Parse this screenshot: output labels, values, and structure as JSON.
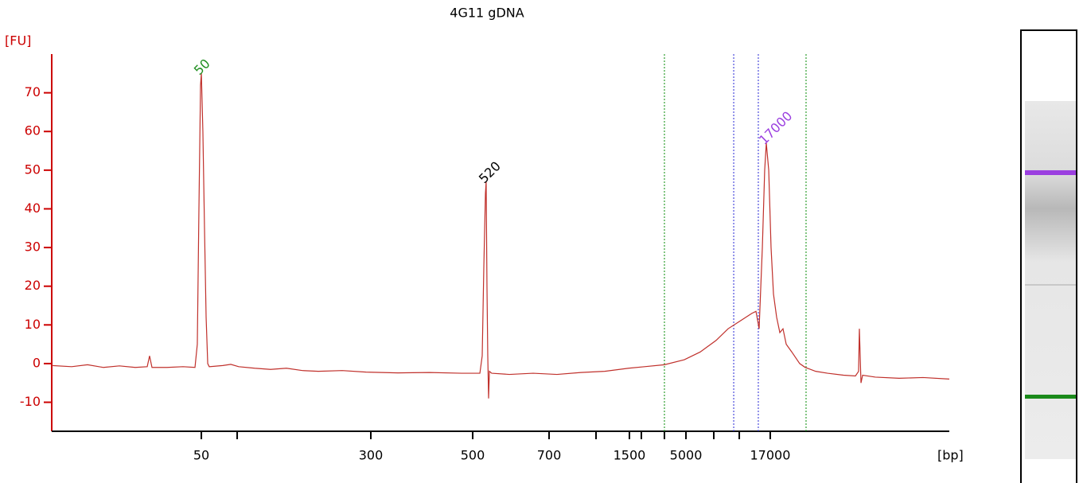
{
  "chart_data": {
    "type": "line",
    "title": "4G11 gDNA",
    "y_label": "[FU]",
    "x_label": "[bp]",
    "color": "#c0302b",
    "axis_color": "#cc0000",
    "xlim": [
      0,
      100
    ],
    "ylim": [
      -17.5,
      80
    ],
    "yticks": [
      -10,
      0,
      10,
      20,
      30,
      40,
      50,
      60,
      70
    ],
    "xticks": [
      {
        "value": 16.67,
        "label": "50"
      },
      {
        "value": 20.66,
        "label": null
      },
      {
        "value": 35.55,
        "label": "300"
      },
      {
        "value": 46.9,
        "label": "500"
      },
      {
        "value": 55.41,
        "label": "700"
      },
      {
        "value": 60.64,
        "label": null
      },
      {
        "value": 64.36,
        "label": "1500"
      },
      {
        "value": 65.69,
        "label": null
      },
      {
        "value": 68.26,
        "label": null
      },
      {
        "value": 70.66,
        "label": "5000"
      },
      {
        "value": 73.76,
        "label": null
      },
      {
        "value": 76.6,
        "label": null
      },
      {
        "value": 80.05,
        "label": "17000"
      }
    ],
    "x": [
      0,
      2.22,
      3.99,
      5.76,
      7.54,
      9.31,
      10.64,
      10.9,
      11.17,
      12.85,
      14.63,
      15.96,
      16.22,
      16.4,
      16.58,
      16.67,
      16.84,
      17.02,
      17.2,
      17.38,
      17.55,
      19.06,
      19.95,
      20.83,
      22.61,
      24.38,
      26.15,
      27.93,
      29.7,
      32.36,
      35.02,
      38.56,
      42.11,
      45.66,
      47.7,
      47.96,
      48.14,
      48.32,
      48.4,
      48.49,
      48.58,
      48.67,
      48.76,
      49.02,
      50.98,
      53.63,
      56.29,
      58.95,
      61.61,
      64.27,
      66.05,
      68.26,
      70.48,
      72.25,
      74.02,
      75.35,
      76.68,
      78.01,
      78.46,
      78.81,
      79.17,
      79.43,
      79.61,
      79.88,
      80.14,
      80.41,
      80.76,
      81.12,
      81.47,
      81.83,
      82.45,
      83.33,
      83.95,
      85.11,
      86.44,
      88.21,
      89.54,
      89.89,
      89.98,
      90.16,
      90.34,
      91.76,
      94.41,
      97.07,
      100
    ],
    "values": [
      -0.5,
      -0.8,
      -0.3,
      -1,
      -0.6,
      -1,
      -0.8,
      2,
      -1,
      -1,
      -0.8,
      -1,
      5,
      40,
      72,
      75,
      60,
      35,
      12,
      0,
      -0.8,
      -0.5,
      -0.2,
      -0.8,
      -1.2,
      -1.5,
      -1.2,
      -1.8,
      -2,
      -1.8,
      -2.2,
      -2.4,
      -2.3,
      -2.5,
      -2.5,
      2,
      25,
      44,
      47,
      20,
      2,
      -9,
      -2,
      -2.5,
      -2.8,
      -2.5,
      -2.8,
      -2.3,
      -2,
      -1.2,
      -0.8,
      -0.3,
      1,
      3,
      6,
      9,
      11,
      13,
      13.5,
      9,
      30,
      50,
      57,
      50,
      30,
      18,
      12,
      8,
      9,
      5,
      3,
      0,
      -1,
      -2,
      -2.5,
      -3,
      -3.2,
      -2,
      9,
      -5,
      -3,
      -3.5,
      -3.8,
      -3.6,
      -4
    ],
    "markers": [
      {
        "x": 68.26,
        "color": "#2e9e2e"
      },
      {
        "x": 75.98,
        "color": "#4b4bdc"
      },
      {
        "x": 78.72,
        "color": "#4b4bdc"
      },
      {
        "x": 84.04,
        "color": "#2e9e2e"
      }
    ],
    "annotations": [
      {
        "text": "50",
        "x": 16.67,
        "y": 75,
        "color": "#1f8f1f"
      },
      {
        "text": "520",
        "x": 48.4,
        "y": 47,
        "color": "#000000"
      },
      {
        "text": "17000",
        "x": 79.61,
        "y": 57,
        "color": "#9b3fe0"
      }
    ]
  }
}
